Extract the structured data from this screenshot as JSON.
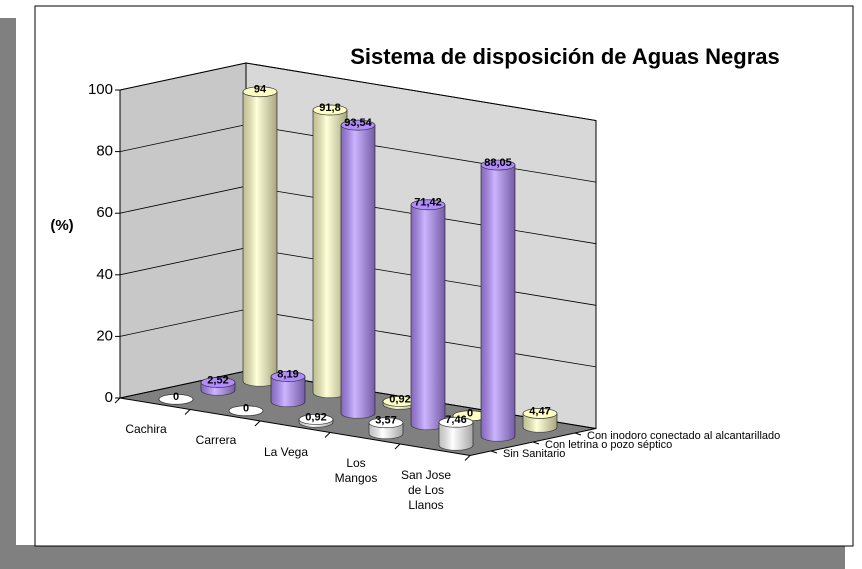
{
  "chart_data": {
    "type": "bar3d",
    "title": "Sistema de disposición de Aguas Negras",
    "y_label": "(%)",
    "categories": [
      "Cachira",
      "Carrera",
      "La Vega",
      "Los Mangos",
      "San Jose de Los Llanos"
    ],
    "series": [
      {
        "name": "Sin Sanitario",
        "color": "#ffffff",
        "values": [
          0,
          0,
          0.92,
          3.57,
          7.46
        ],
        "value_labels": [
          "0",
          "0",
          "0,92",
          "3,57",
          "7,46"
        ]
      },
      {
        "name": "Con letrina o pozo séptico",
        "color": "#b18cff",
        "values": [
          2.52,
          8.19,
          93.54,
          71.42,
          88.05
        ],
        "value_labels": [
          "2,52",
          "8,19",
          "93,54",
          "71,42",
          "88,05"
        ]
      },
      {
        "name": "Con inodoro conectado al alcantarillado",
        "color": "#ffffc4",
        "values": [
          94,
          91.8,
          0.92,
          0,
          4.47
        ],
        "value_labels": [
          "94",
          "91,8",
          "0,92",
          "0",
          "4,47"
        ]
      }
    ],
    "ylim": [
      0,
      100
    ],
    "yticks": [
      0,
      20,
      40,
      60,
      80,
      100
    ],
    "grid": true
  }
}
